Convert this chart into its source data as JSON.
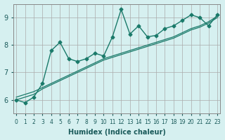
{
  "xlabel": "Humidex (Indice chaleur)",
  "ylabel": "",
  "bg_color": "#d6f0f0",
  "grid_color": "#aaaaaa",
  "line_color": "#1a7a6a",
  "x_data": [
    0,
    1,
    2,
    3,
    4,
    5,
    6,
    7,
    8,
    9,
    10,
    11,
    12,
    13,
    14,
    15,
    16,
    17,
    18,
    19,
    20,
    21,
    22,
    23
  ],
  "y_main": [
    6.0,
    5.9,
    6.1,
    6.6,
    7.8,
    8.1,
    7.5,
    7.4,
    7.5,
    7.7,
    7.6,
    8.3,
    9.3,
    8.4,
    8.7,
    8.3,
    8.35,
    8.6,
    8.7,
    8.9,
    9.1,
    9.0,
    8.7,
    9.1
  ],
  "y_trend1": [
    6.0,
    6.1,
    6.2,
    6.4,
    6.55,
    6.7,
    6.85,
    7.0,
    7.15,
    7.3,
    7.45,
    7.55,
    7.65,
    7.75,
    7.85,
    7.95,
    8.05,
    8.15,
    8.25,
    8.4,
    8.55,
    8.65,
    8.8,
    9.0
  ],
  "y_trend2": [
    6.1,
    6.2,
    6.3,
    6.45,
    6.6,
    6.75,
    6.9,
    7.05,
    7.2,
    7.35,
    7.5,
    7.6,
    7.7,
    7.8,
    7.9,
    8.0,
    8.1,
    8.2,
    8.3,
    8.45,
    8.6,
    8.7,
    8.85,
    9.05
  ],
  "ylim": [
    5.5,
    9.5
  ],
  "xlim": [
    0,
    23
  ],
  "yticks": [
    6,
    7,
    8,
    9
  ],
  "tick_color": "#1a5a5a",
  "xtick_labels": [
    "0",
    "1",
    "2",
    "3",
    "4",
    "5",
    "6",
    "7",
    "8",
    "9",
    "10",
    "11",
    "12",
    "13",
    "14",
    "15",
    "16",
    "17",
    "18",
    "19",
    "20",
    "21",
    "22",
    "23"
  ]
}
